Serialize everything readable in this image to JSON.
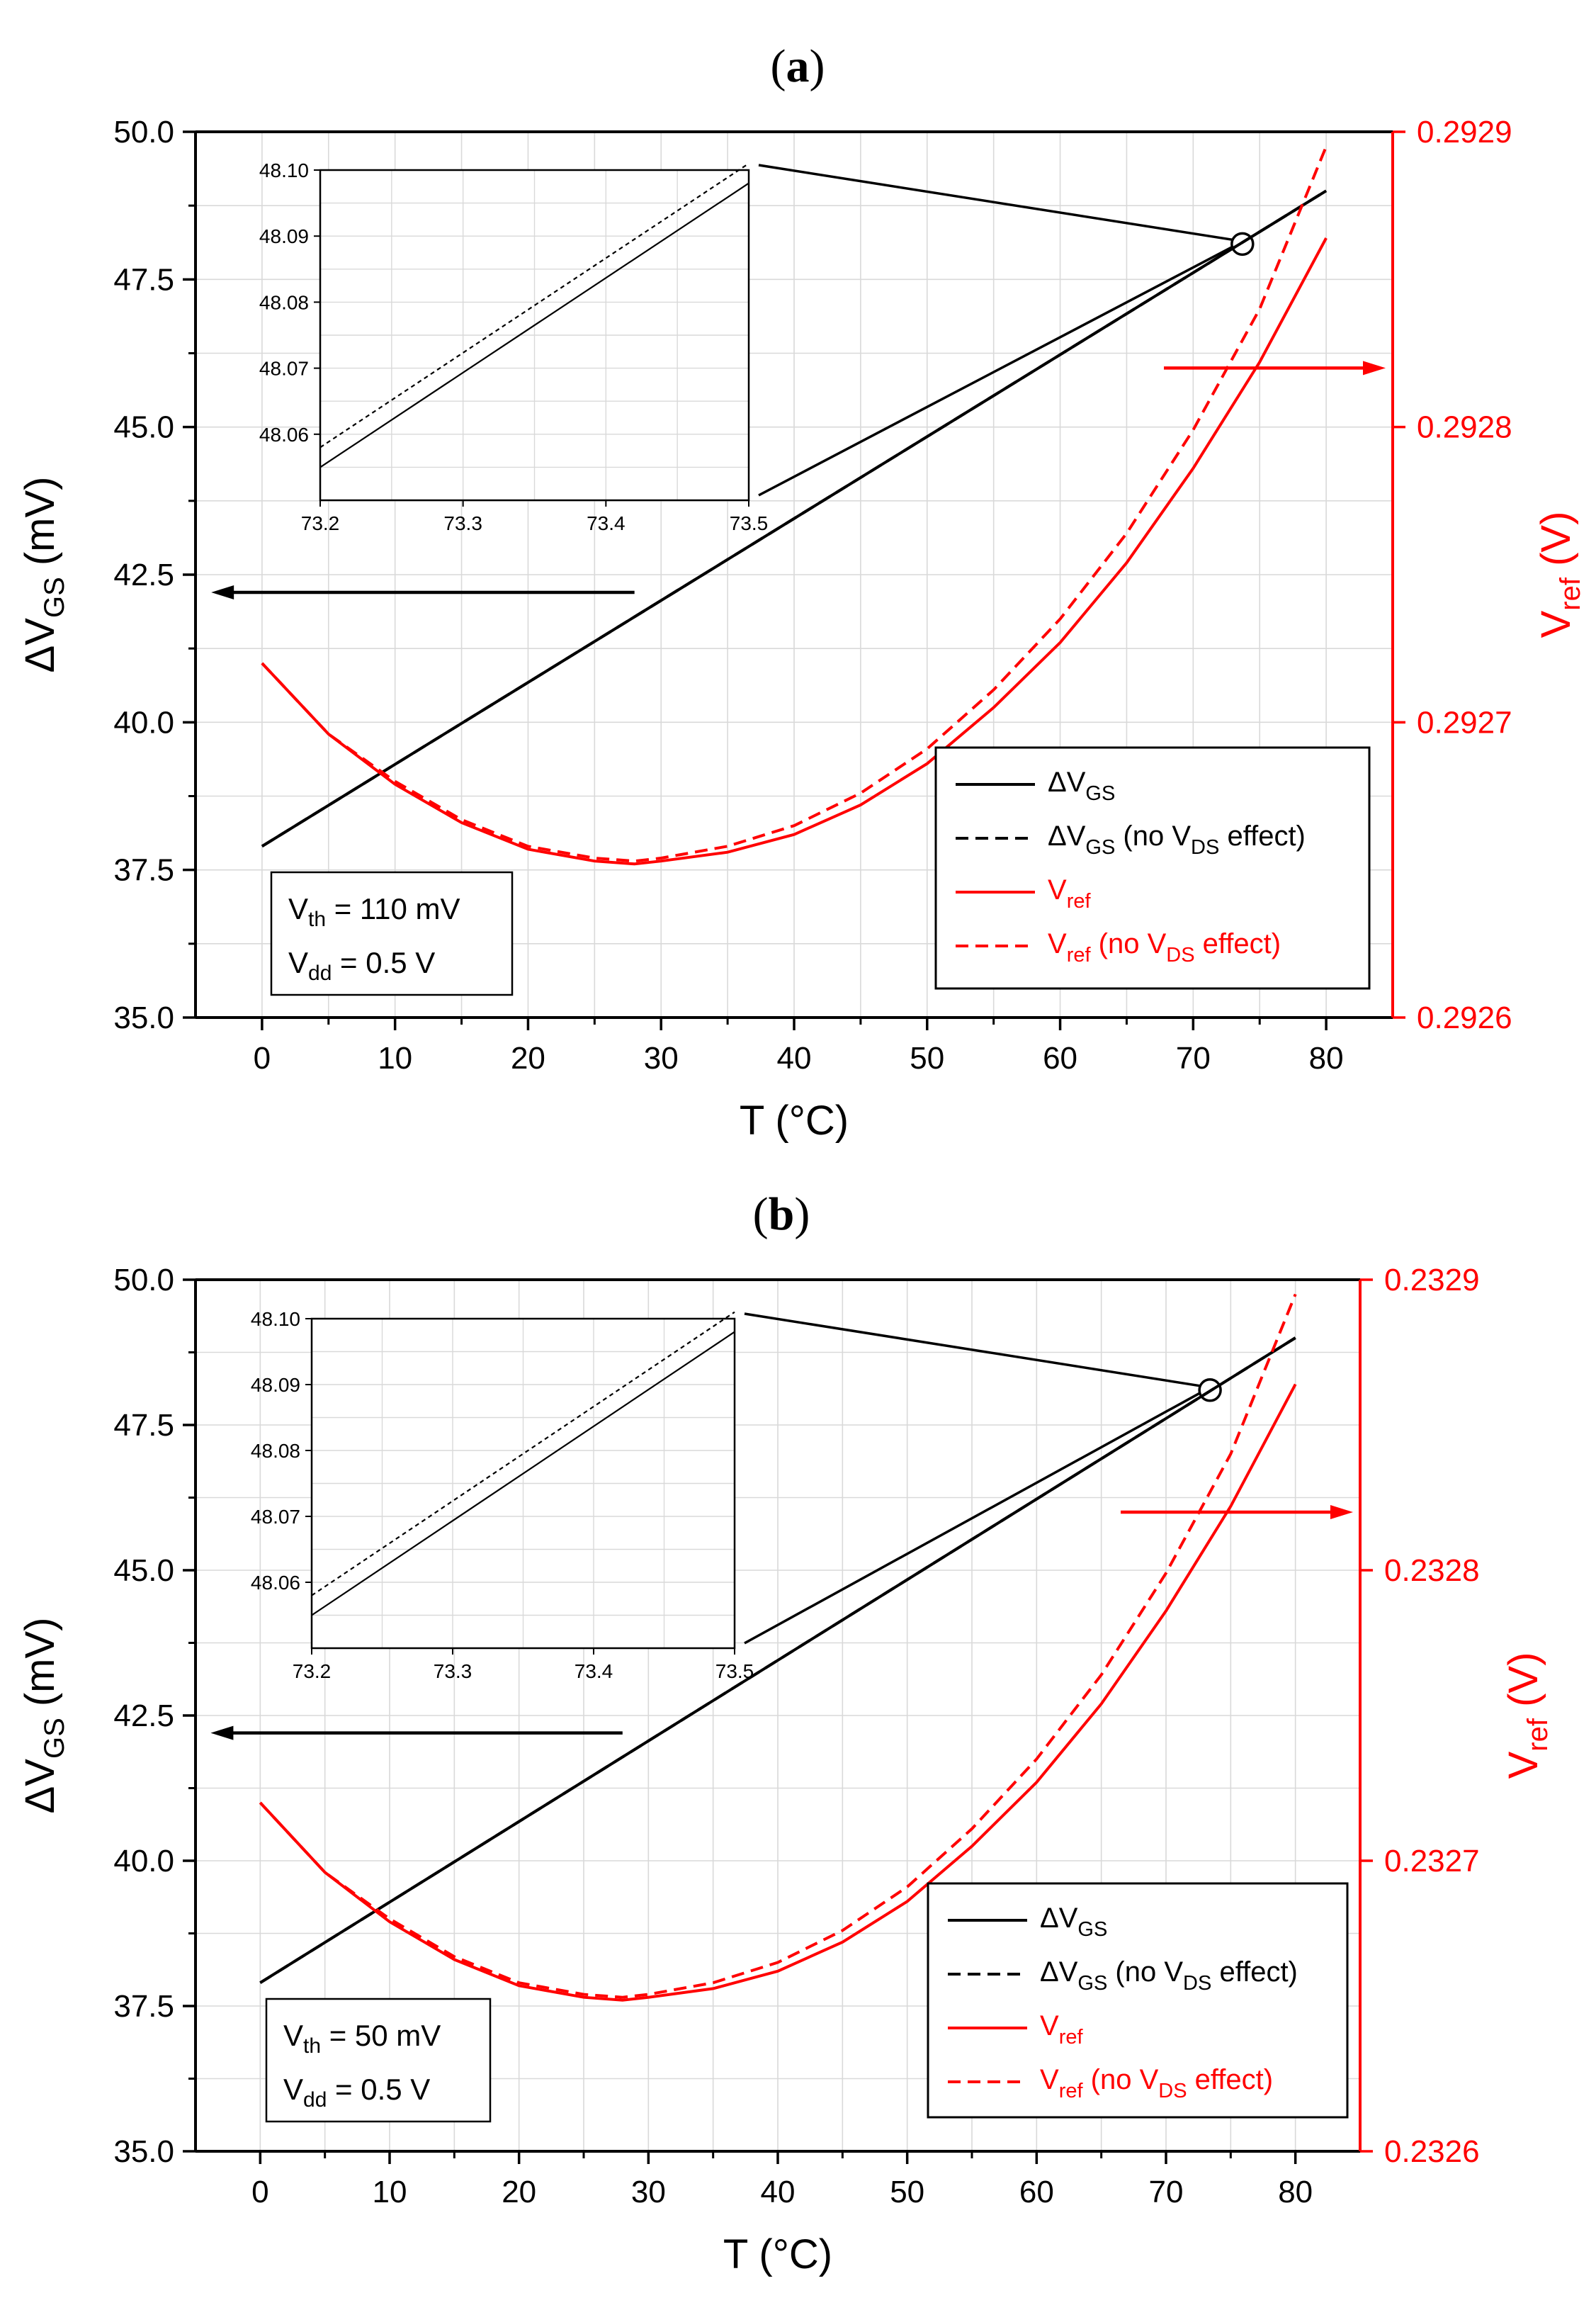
{
  "figure": {
    "panels": [
      {
        "id": "a",
        "label": "a",
        "annotation": {
          "vth": "110 mV",
          "vdd": "0.5 V"
        }
      },
      {
        "id": "b",
        "label": "b",
        "annotation": {
          "vth": "50 mV",
          "vdd": "0.5 V"
        }
      }
    ],
    "colors": {
      "left_axis": "#000000",
      "right_axis": "#ff0000",
      "grid": "#d9d9d9"
    }
  },
  "chart_data": [
    {
      "type": "line",
      "panel": "a",
      "xlabel": "T (°C)",
      "ylabel_left": {
        "main": "ΔV",
        "sub": "GS",
        "unit": "(mV)"
      },
      "ylabel_right": {
        "main": "V",
        "sub": "ref",
        "unit": "(V)"
      },
      "xlim": [
        -5,
        85
      ],
      "x_ticks": [
        "0",
        "10",
        "20",
        "30",
        "40",
        "50",
        "60",
        "70",
        "80"
      ],
      "ylim_left": [
        35.0,
        50.0
      ],
      "y_ticks_left": [
        "35.0",
        "37.5",
        "40.0",
        "42.5",
        "45.0",
        "47.5",
        "50.0"
      ],
      "ylim_right": [
        0.2926,
        0.2929
      ],
      "y_ticks_right": [
        "0.2926",
        "0.2927",
        "0.2928",
        "0.2929"
      ],
      "grid": true,
      "legend_position": "lower-right",
      "legend": [
        {
          "main": "ΔV",
          "sub": "GS",
          "rest": "",
          "rest_sub": "",
          "rest_tail": ""
        },
        {
          "main": "ΔV",
          "sub": "GS",
          "rest": " (no V",
          "rest_sub": "DS",
          "rest_tail": " effect)"
        },
        {
          "main": "V",
          "sub": "ref",
          "rest": "",
          "rest_sub": "",
          "rest_tail": ""
        },
        {
          "main": "V",
          "sub": "ref",
          "rest": " (no V",
          "rest_sub": "DS",
          "rest_tail": " effect)"
        }
      ],
      "series": [
        {
          "axis": "left",
          "color": "#000000",
          "style": "solid",
          "x": [
            0,
            80
          ],
          "y": [
            37.9,
            49.0
          ]
        },
        {
          "axis": "left",
          "color": "#000000",
          "style": "dashed",
          "x": [
            0,
            80
          ],
          "y": [
            37.9,
            49.0
          ]
        },
        {
          "axis": "right",
          "color": "#ff0000",
          "style": "solid",
          "x": [
            0,
            5,
            10,
            15,
            20,
            25,
            28,
            30,
            35,
            40,
            45,
            50,
            55,
            60,
            65,
            70,
            75,
            80
          ],
          "y": [
            0.29272,
            0.292696,
            0.292679,
            0.292666,
            0.292657,
            0.292653,
            0.292652,
            0.292653,
            0.292656,
            0.292662,
            0.292672,
            0.292686,
            0.292705,
            0.292727,
            0.292754,
            0.292786,
            0.292822,
            0.292864
          ]
        },
        {
          "axis": "right",
          "color": "#ff0000",
          "style": "dashed",
          "x": [
            0,
            5,
            10,
            15,
            20,
            25,
            28,
            30,
            35,
            40,
            45,
            50,
            55,
            60,
            65,
            70,
            75,
            80
          ],
          "y": [
            0.29272,
            0.292696,
            0.29268,
            0.292667,
            0.292658,
            0.292654,
            0.292653,
            0.292654,
            0.292658,
            0.292665,
            0.292676,
            0.292691,
            0.292711,
            0.292735,
            0.292764,
            0.292799,
            0.29284,
            0.292895
          ]
        }
      ],
      "arrows": [
        {
          "points_to": "left"
        },
        {
          "points_to": "right"
        }
      ],
      "zoom_marker": {
        "x": 73.7,
        "y": 48.1
      },
      "inset": {
        "xlim": [
          73.2,
          73.5
        ],
        "x_ticks": [
          "73.2",
          "73.3",
          "73.4",
          "73.5"
        ],
        "ylim": [
          48.05,
          48.1
        ],
        "y_ticks": [
          "48.06",
          "48.07",
          "48.08",
          "48.09",
          "48.10"
        ],
        "series": [
          {
            "style": "solid",
            "x": [
              73.2,
              73.5
            ],
            "y": [
              48.055,
              48.098
            ]
          },
          {
            "style": "dashed",
            "x": [
              73.2,
              73.5
            ],
            "y": [
              48.058,
              48.101
            ]
          }
        ]
      }
    },
    {
      "type": "line",
      "panel": "b",
      "xlabel": "T (°C)",
      "ylabel_left": {
        "main": "ΔV",
        "sub": "GS",
        "unit": "(mV)"
      },
      "ylabel_right": {
        "main": "V",
        "sub": "ref",
        "unit": "(V)"
      },
      "xlim": [
        -5,
        85
      ],
      "x_ticks": [
        "0",
        "10",
        "20",
        "30",
        "40",
        "50",
        "60",
        "70",
        "80"
      ],
      "ylim_left": [
        35.0,
        50.0
      ],
      "y_ticks_left": [
        "35.0",
        "37.5",
        "40.0",
        "42.5",
        "45.0",
        "47.5",
        "50.0"
      ],
      "ylim_right": [
        0.2326,
        0.2329
      ],
      "y_ticks_right": [
        "0.2326",
        "0.2327",
        "0.2328",
        "0.2329"
      ],
      "grid": true,
      "legend_position": "lower-right",
      "legend": [
        {
          "main": "ΔV",
          "sub": "GS",
          "rest": "",
          "rest_sub": "",
          "rest_tail": ""
        },
        {
          "main": "ΔV",
          "sub": "GS",
          "rest": " (no V",
          "rest_sub": "DS",
          "rest_tail": " effect)"
        },
        {
          "main": "V",
          "sub": "ref",
          "rest": "",
          "rest_sub": "",
          "rest_tail": ""
        },
        {
          "main": "V",
          "sub": "ref",
          "rest": " (no V",
          "rest_sub": "DS",
          "rest_tail": " effect)"
        }
      ],
      "series": [
        {
          "axis": "left",
          "color": "#000000",
          "style": "solid",
          "x": [
            0,
            80
          ],
          "y": [
            37.9,
            49.0
          ]
        },
        {
          "axis": "left",
          "color": "#000000",
          "style": "dashed",
          "x": [
            0,
            80
          ],
          "y": [
            37.9,
            49.0
          ]
        },
        {
          "axis": "right",
          "color": "#ff0000",
          "style": "solid",
          "x": [
            0,
            5,
            10,
            15,
            20,
            25,
            28,
            30,
            35,
            40,
            45,
            50,
            55,
            60,
            65,
            70,
            75,
            80
          ],
          "y": [
            0.23272,
            0.232696,
            0.232679,
            0.232666,
            0.232657,
            0.232653,
            0.232652,
            0.232653,
            0.232656,
            0.232662,
            0.232672,
            0.232686,
            0.232705,
            0.232727,
            0.232754,
            0.232786,
            0.232822,
            0.232864
          ]
        },
        {
          "axis": "right",
          "color": "#ff0000",
          "style": "dashed",
          "x": [
            0,
            5,
            10,
            15,
            20,
            25,
            28,
            30,
            35,
            40,
            45,
            50,
            55,
            60,
            65,
            70,
            75,
            80
          ],
          "y": [
            0.23272,
            0.232696,
            0.23268,
            0.232667,
            0.232658,
            0.232654,
            0.232653,
            0.232654,
            0.232658,
            0.232665,
            0.232676,
            0.232691,
            0.232711,
            0.232735,
            0.232764,
            0.232799,
            0.23284,
            0.232895
          ]
        }
      ],
      "arrows": [
        {
          "points_to": "left"
        },
        {
          "points_to": "right"
        }
      ],
      "zoom_marker": {
        "x": 73.4,
        "y": 48.1
      },
      "inset": {
        "xlim": [
          73.2,
          73.5
        ],
        "x_ticks": [
          "73.2",
          "73.3",
          "73.4",
          "73.5"
        ],
        "ylim": [
          48.05,
          48.1
        ],
        "y_ticks": [
          "48.06",
          "48.07",
          "48.08",
          "48.09",
          "48.10"
        ],
        "series": [
          {
            "style": "solid",
            "x": [
              73.2,
              73.5
            ],
            "y": [
              48.055,
              48.098
            ]
          },
          {
            "style": "dashed",
            "x": [
              73.2,
              73.5
            ],
            "y": [
              48.058,
              48.101
            ]
          }
        ]
      }
    }
  ]
}
